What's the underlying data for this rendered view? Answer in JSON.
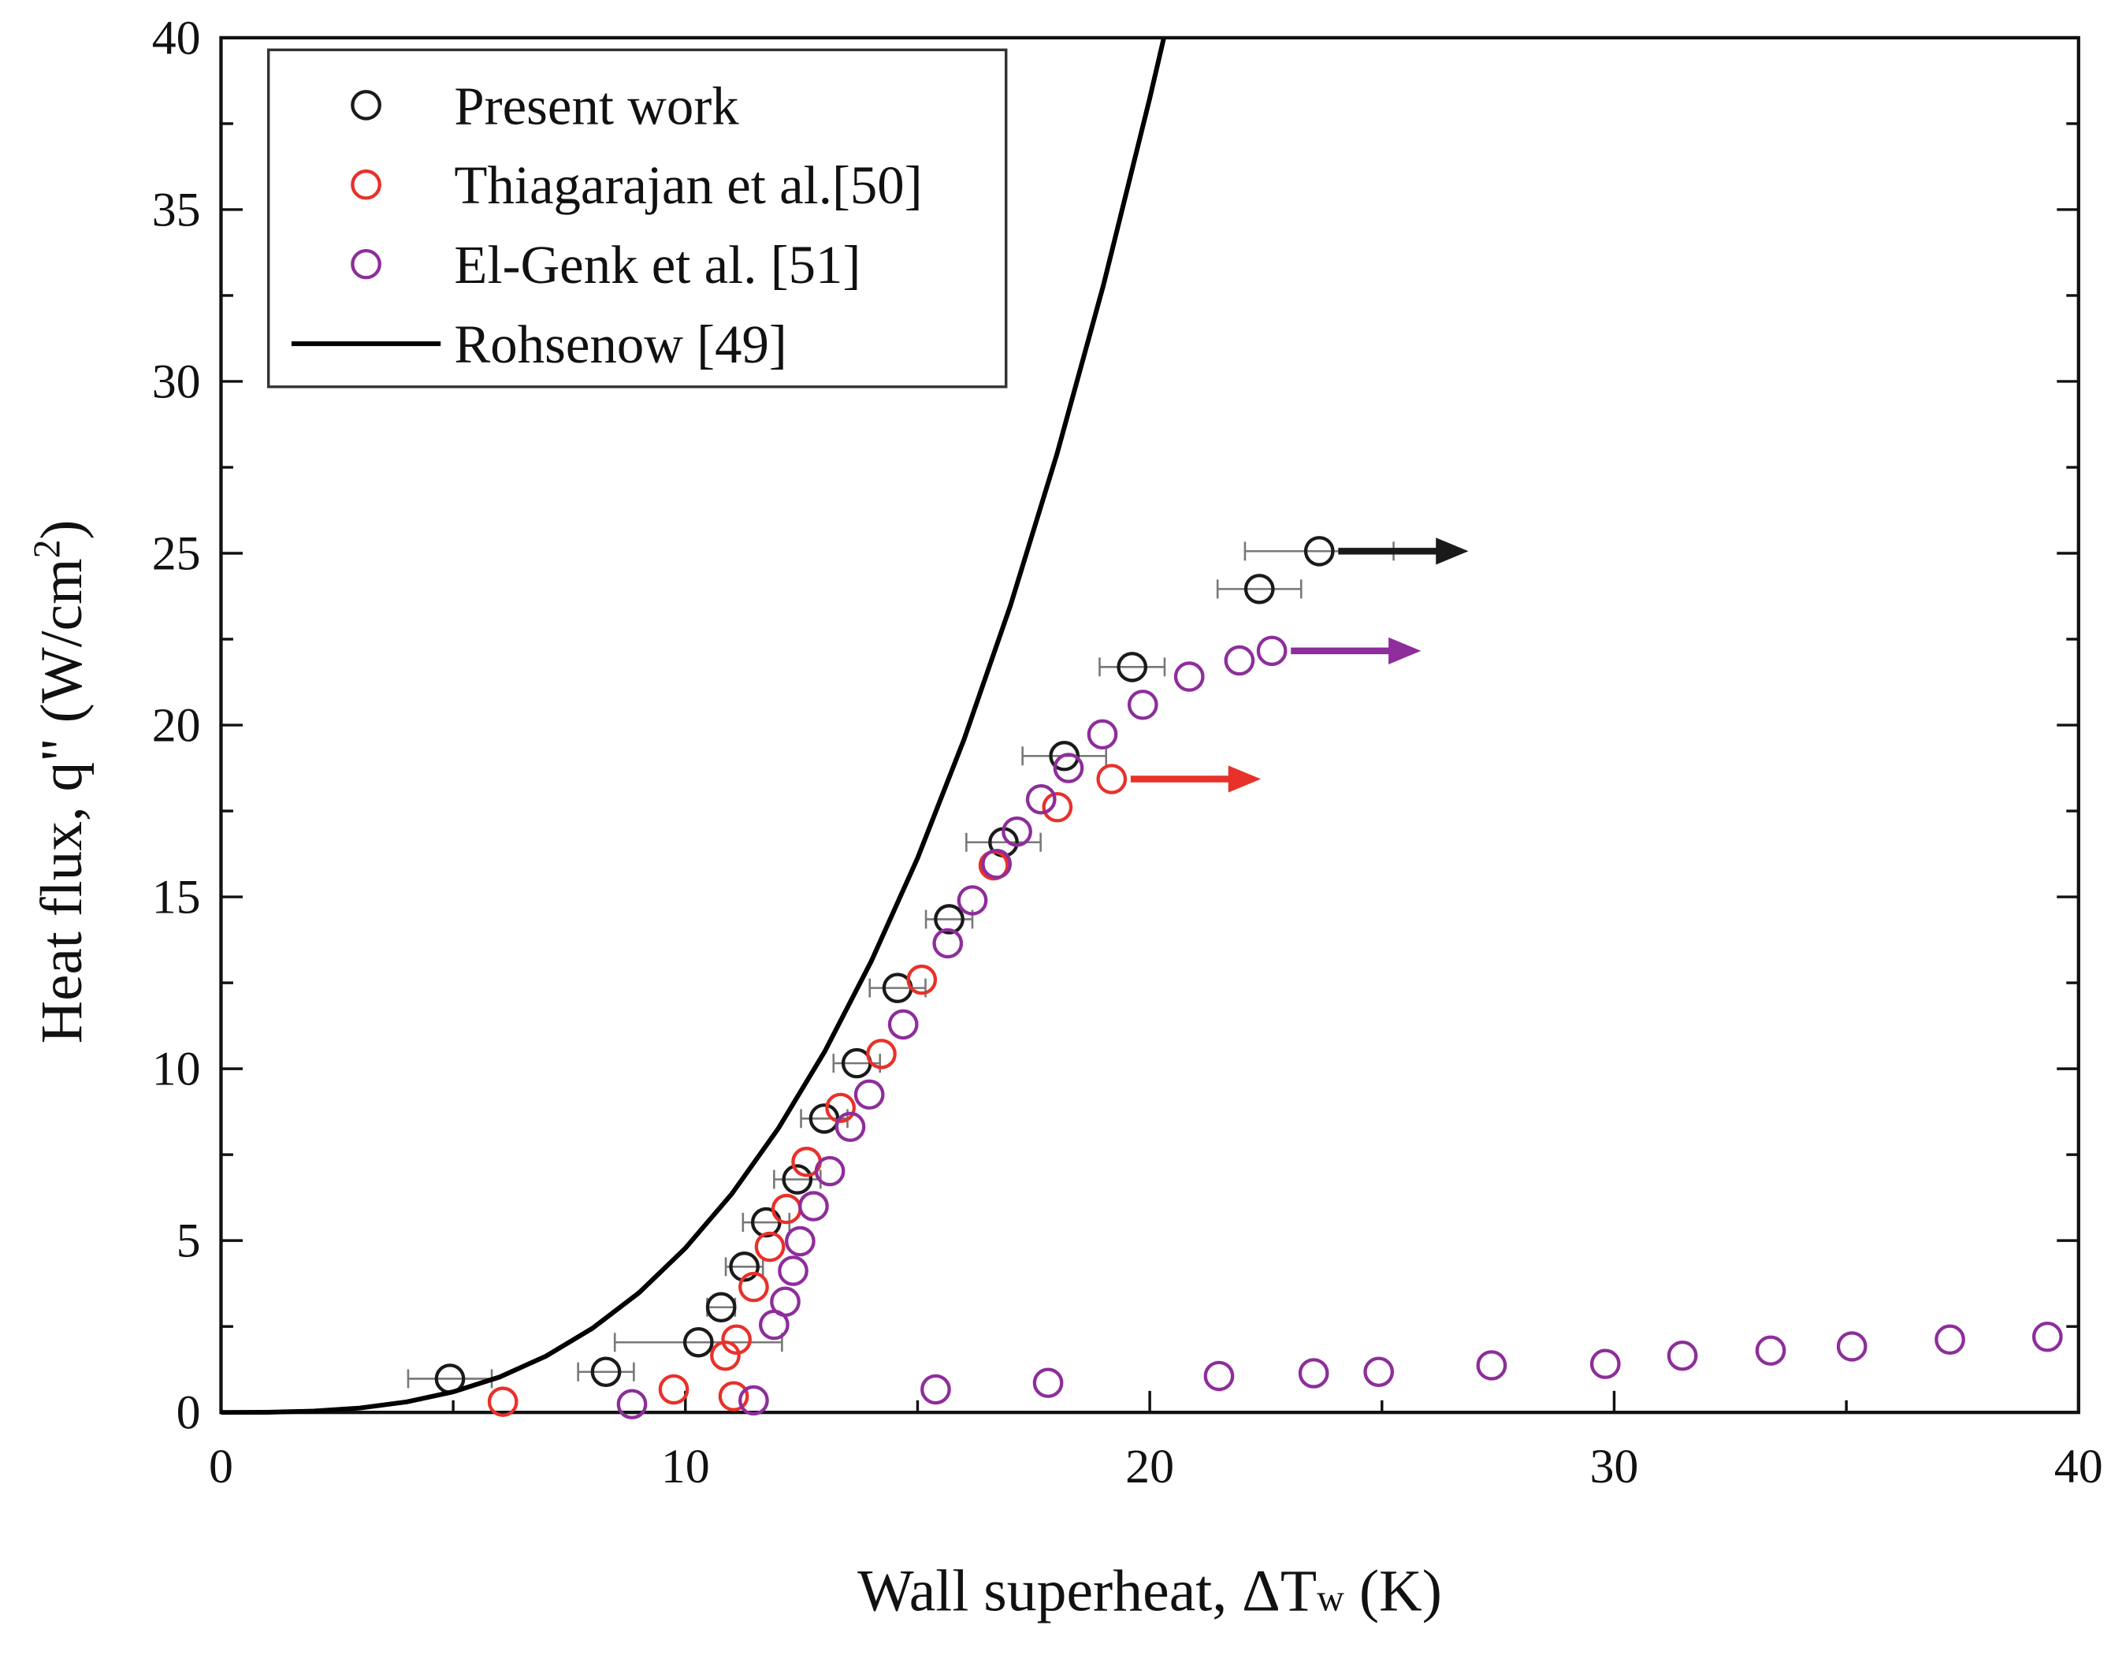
{
  "chart_data": {
    "type": "scatter",
    "x_label": [
      "Wall superheat, ΔT",
      "w",
      " (K)"
    ],
    "y_label": [
      "Heat flux, q\" (W/cm",
      "2",
      ")"
    ],
    "xlim": [
      0,
      40
    ],
    "ylim": [
      0,
      40
    ],
    "xticks": [
      0,
      10,
      20,
      30,
      40
    ],
    "yticks": [
      0,
      5,
      10,
      15,
      20,
      25,
      30,
      35,
      40
    ],
    "xminorticks": [
      5,
      15,
      25,
      35
    ],
    "yminorticks": [
      2.5,
      7.5,
      12.5,
      17.5,
      22.5,
      27.5,
      32.5,
      37.5
    ],
    "legend": "upper left",
    "series": [
      {
        "name": "Present work",
        "color": "#1a1a1a",
        "mark": "scatter",
        "arrow": true,
        "x": [
          4.93,
          8.29,
          10.28,
          10.77,
          11.27,
          11.74,
          12.41,
          12.99,
          13.69,
          14.57,
          15.68,
          16.85,
          18.16,
          19.62,
          22.36,
          23.65
        ],
        "values": [
          0.98,
          1.18,
          2.04,
          3.06,
          4.24,
          5.53,
          6.78,
          8.55,
          10.16,
          12.35,
          14.35,
          16.59,
          19.1,
          21.69,
          23.96,
          25.06
        ],
        "xerr": [
          0.9,
          0.6,
          1.8,
          0.3,
          0.4,
          0.5,
          0.5,
          0.5,
          0.5,
          0.6,
          0.5,
          0.8,
          0.9,
          0.7,
          0.9,
          1.6
        ]
      },
      {
        "name": "Thiagarajan et al.[50]",
        "color": "#e8312a",
        "mark": "scatter",
        "arrow": true,
        "x": [
          6.07,
          9.75,
          11.04,
          10.86,
          11.1,
          11.47,
          11.82,
          12.18,
          12.61,
          13.34,
          14.22,
          15.09,
          16.64,
          18.01,
          19.18
        ],
        "values": [
          0.31,
          0.67,
          0.47,
          1.65,
          2.12,
          3.65,
          4.82,
          5.92,
          7.29,
          8.86,
          10.43,
          12.59,
          15.92,
          17.61,
          18.43
        ]
      },
      {
        "name": "El-Genk et al. [51]",
        "color": "#8e2d9b",
        "mark": "scatter",
        "arrow": true,
        "x": [
          8.85,
          11.47,
          11.91,
          12.15,
          12.32,
          12.47,
          12.76,
          13.11,
          13.55,
          13.96,
          14.69,
          15.65,
          16.18,
          16.7,
          17.14,
          17.66,
          18.25,
          18.98,
          19.85,
          20.85,
          21.93,
          22.63,
          15.39,
          17.81,
          21.49,
          23.53,
          24.93,
          27.36,
          29.81,
          31.47,
          33.37,
          35.12,
          37.23,
          39.33
        ],
        "values": [
          0.24,
          0.35,
          2.55,
          3.22,
          4.12,
          4.98,
          6.0,
          7.02,
          8.31,
          9.25,
          11.29,
          13.65,
          14.9,
          15.96,
          16.9,
          17.84,
          18.75,
          19.73,
          20.59,
          21.41,
          21.88,
          22.16,
          0.67,
          0.86,
          1.06,
          1.14,
          1.18,
          1.37,
          1.41,
          1.65,
          1.8,
          1.92,
          2.12,
          2.2
        ],
        "arrow_index": 21
      },
      {
        "name": "Rohsenow [49]",
        "color": "#000000",
        "mark": "line",
        "x": [
          0,
          1,
          2,
          3,
          4,
          5,
          6,
          7,
          8,
          9,
          10,
          11,
          12,
          13,
          14,
          15,
          16,
          17,
          18,
          19,
          20,
          20.3
        ],
        "values": [
          0,
          0.005,
          0.038,
          0.129,
          0.306,
          0.598,
          1.03,
          1.64,
          2.45,
          3.48,
          4.78,
          6.36,
          8.26,
          10.5,
          13.12,
          16.13,
          19.58,
          23.48,
          27.88,
          32.79,
          38.24,
          39.98
        ]
      }
    ]
  }
}
